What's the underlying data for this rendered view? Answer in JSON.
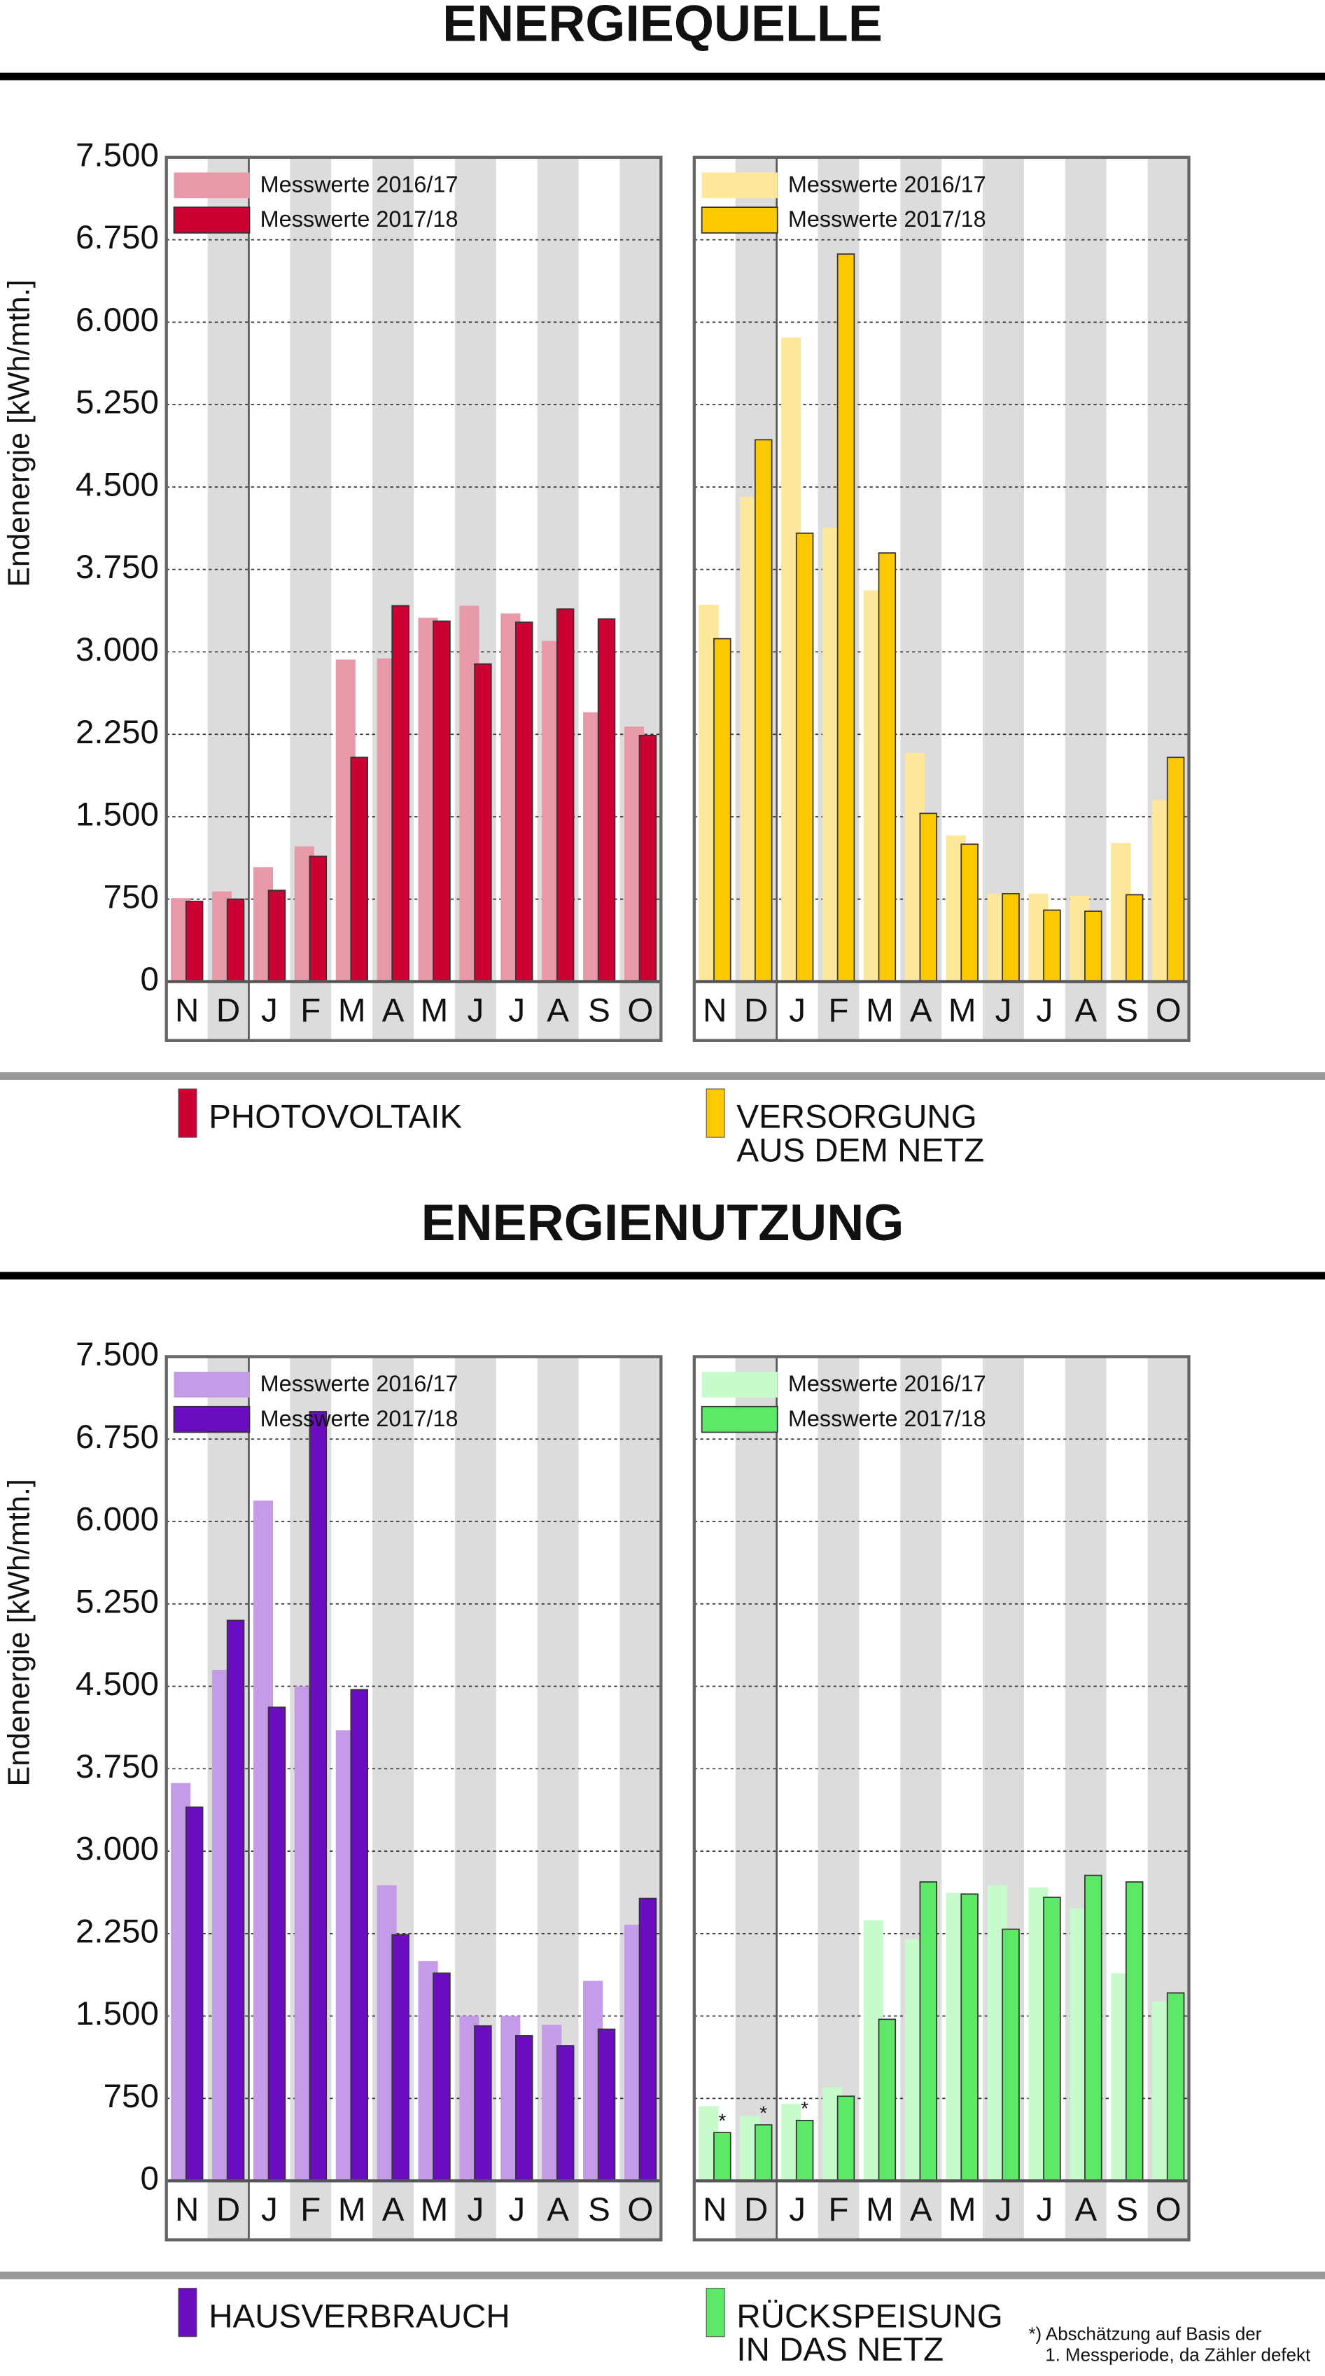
{
  "sections": [
    {
      "title": "ENERGIEQUELLE",
      "legend": [
        [
          "PHOTOVOLTAIK"
        ],
        [
          "VERSORGUNG",
          "AUS DEM NETZ"
        ]
      ]
    },
    {
      "title": "ENERGIENUTZUNG",
      "legend": [
        [
          "HAUSVERBRAUCH"
        ],
        [
          "RÜCKSPEISUNG",
          "IN DAS NETZ"
        ]
      ]
    }
  ],
  "footnote": [
    "*) Abschätzung auf Basis der",
    "1. Messperiode, da Zähler defekt"
  ],
  "chart_data": [
    {
      "type": "bar",
      "ylabel": "Endenergie [kWh/mth.]",
      "categories": [
        "N",
        "D",
        "J",
        "F",
        "M",
        "A",
        "M",
        "J",
        "J",
        "A",
        "S",
        "O"
      ],
      "series": [
        {
          "name": "Messwerte 2016/17",
          "color": "#e899a8",
          "values": [
            760,
            820,
            1040,
            1230,
            2930,
            2940,
            3310,
            3420,
            3350,
            3100,
            2450,
            2320
          ]
        },
        {
          "name": "Messwerte 2017/18",
          "color": "#cc0033",
          "values": [
            730,
            750,
            830,
            1140,
            2040,
            3420,
            3280,
            2890,
            3270,
            3390,
            3300,
            2240
          ]
        }
      ],
      "ylim": [
        0,
        7500
      ],
      "yticks": [
        0,
        750,
        {
          "value": 1500,
          "label": "1.500"
        },
        {
          "value": 2250,
          "label": "2.250"
        },
        {
          "value": 3000,
          "label": "3.000"
        },
        {
          "value": 3750,
          "label": "3.750"
        },
        {
          "value": 4500,
          "label": "4.500"
        },
        {
          "value": 5250,
          "label": "5.250"
        },
        {
          "value": 6000,
          "label": "6.000"
        },
        {
          "value": 6750,
          "label": "6.750"
        },
        {
          "value": 7500,
          "label": "7.500"
        }
      ],
      "grid": true
    },
    {
      "type": "bar",
      "categories": [
        "N",
        "D",
        "J",
        "F",
        "M",
        "A",
        "M",
        "J",
        "J",
        "A",
        "S",
        "O"
      ],
      "series": [
        {
          "name": "Messwerte 2016/17",
          "color": "#fde79a",
          "values": [
            3430,
            4410,
            5860,
            4130,
            3560,
            2080,
            1330,
            800,
            800,
            780,
            1260,
            1650
          ]
        },
        {
          "name": "Messwerte 2017/18",
          "color": "#fcc800",
          "values": [
            3120,
            4930,
            4080,
            6620,
            3900,
            1530,
            1250,
            800,
            650,
            640,
            790,
            2040
          ]
        }
      ],
      "ylim": [
        0,
        7500
      ],
      "yticks": [
        0,
        750,
        1500,
        2250,
        3000,
        3750,
        4500,
        5250,
        6000,
        6750,
        7500
      ],
      "grid": true
    },
    {
      "type": "bar",
      "ylabel": "Endenergie [kWh/mth.]",
      "categories": [
        "N",
        "D",
        "J",
        "F",
        "M",
        "A",
        "M",
        "J",
        "J",
        "A",
        "S",
        "O"
      ],
      "series": [
        {
          "name": "Messwerte 2016/17",
          "color": "#c39be6",
          "values": [
            3620,
            4650,
            6190,
            4500,
            4100,
            2690,
            2000,
            1500,
            1500,
            1420,
            1820,
            2330
          ]
        },
        {
          "name": "Messwerte 2017/18",
          "color": "#6a0dc0",
          "values": [
            3400,
            5100,
            4310,
            7000,
            4470,
            2240,
            1890,
            1410,
            1320,
            1230,
            1380,
            2570
          ]
        }
      ],
      "ylim": [
        0,
        7500
      ],
      "yticks": [
        0,
        750,
        {
          "value": 1500,
          "label": "1.500"
        },
        {
          "value": 2250,
          "label": "2.250"
        },
        {
          "value": 3000,
          "label": "3.000"
        },
        {
          "value": 3750,
          "label": "3.750"
        },
        {
          "value": 4500,
          "label": "4.500"
        },
        {
          "value": 5250,
          "label": "5.250"
        },
        {
          "value": 6000,
          "label": "6.000"
        },
        {
          "value": 6750,
          "label": "6.750"
        },
        {
          "value": 7500,
          "label": "7.500"
        }
      ],
      "grid": true
    },
    {
      "type": "bar",
      "categories": [
        "N",
        "D",
        "J",
        "F",
        "M",
        "A",
        "M",
        "J",
        "J",
        "A",
        "S",
        "O"
      ],
      "series": [
        {
          "name": "Messwerte 2016/17",
          "color": "#c8fbcc",
          "values": [
            680,
            590,
            700,
            850,
            2370,
            2200,
            2620,
            2690,
            2670,
            2480,
            1890,
            1630
          ]
        },
        {
          "name": "Messwerte 2017/18",
          "color": "#5ee868",
          "values": [
            440,
            510,
            550,
            770,
            1470,
            2720,
            2610,
            2290,
            2580,
            2780,
            2720,
            1710
          ],
          "annotations": [
            "*",
            "*",
            "*",
            null,
            null,
            null,
            null,
            null,
            null,
            null,
            null,
            null
          ]
        }
      ],
      "ylim": [
        0,
        7500
      ],
      "yticks": [
        0,
        750,
        1500,
        2250,
        3000,
        3750,
        4500,
        5250,
        6000,
        6750,
        7500
      ],
      "grid": true
    }
  ]
}
